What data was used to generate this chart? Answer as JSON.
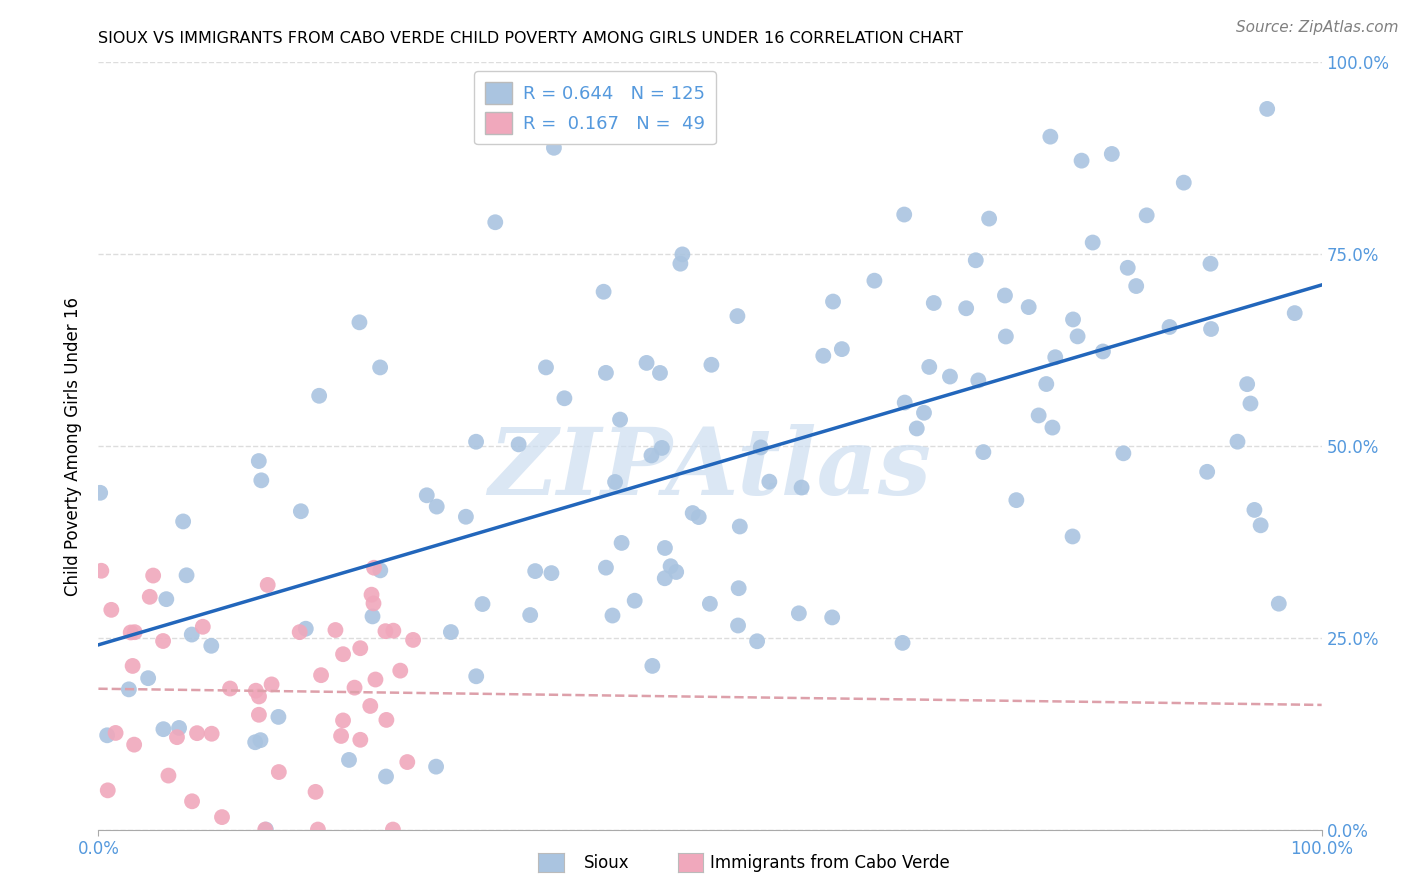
{
  "title": "SIOUX VS IMMIGRANTS FROM CABO VERDE CHILD POVERTY AMONG GIRLS UNDER 16 CORRELATION CHART",
  "source": "Source: ZipAtlas.com",
  "ylabel": "Child Poverty Among Girls Under 16",
  "xlim": [
    0,
    1
  ],
  "ylim": [
    0,
    1
  ],
  "ytick_positions": [
    0.0,
    0.25,
    0.5,
    0.75,
    1.0
  ],
  "ytick_labels_right": [
    "0.0%",
    "25.0%",
    "50.0%",
    "75.0%",
    "100.0%"
  ],
  "xtick_positions": [
    0.0,
    1.0
  ],
  "xtick_labels": [
    "0.0%",
    "100.0%"
  ],
  "legend_line1": "R = 0.644   N = 125",
  "legend_line2": "R =  0.167   N =  49",
  "blue_dot_color": "#aac4e0",
  "pink_dot_color": "#f0a8bc",
  "line_blue_color": "#2266bb",
  "line_pink_color": "#dda0aa",
  "tick_label_color": "#5599dd",
  "watermark_color": "#ccddf0",
  "grid_color": "#dddddd",
  "bg_color": "#ffffff",
  "title_fontsize": 11.5,
  "source_fontsize": 11,
  "legend_fontsize": 13,
  "ylabel_fontsize": 12,
  "tick_fontsize": 12,
  "watermark_text": "ZIPAtlas",
  "bottom_label_sioux": "Sioux",
  "bottom_label_cabo": "Immigrants from Cabo Verde"
}
